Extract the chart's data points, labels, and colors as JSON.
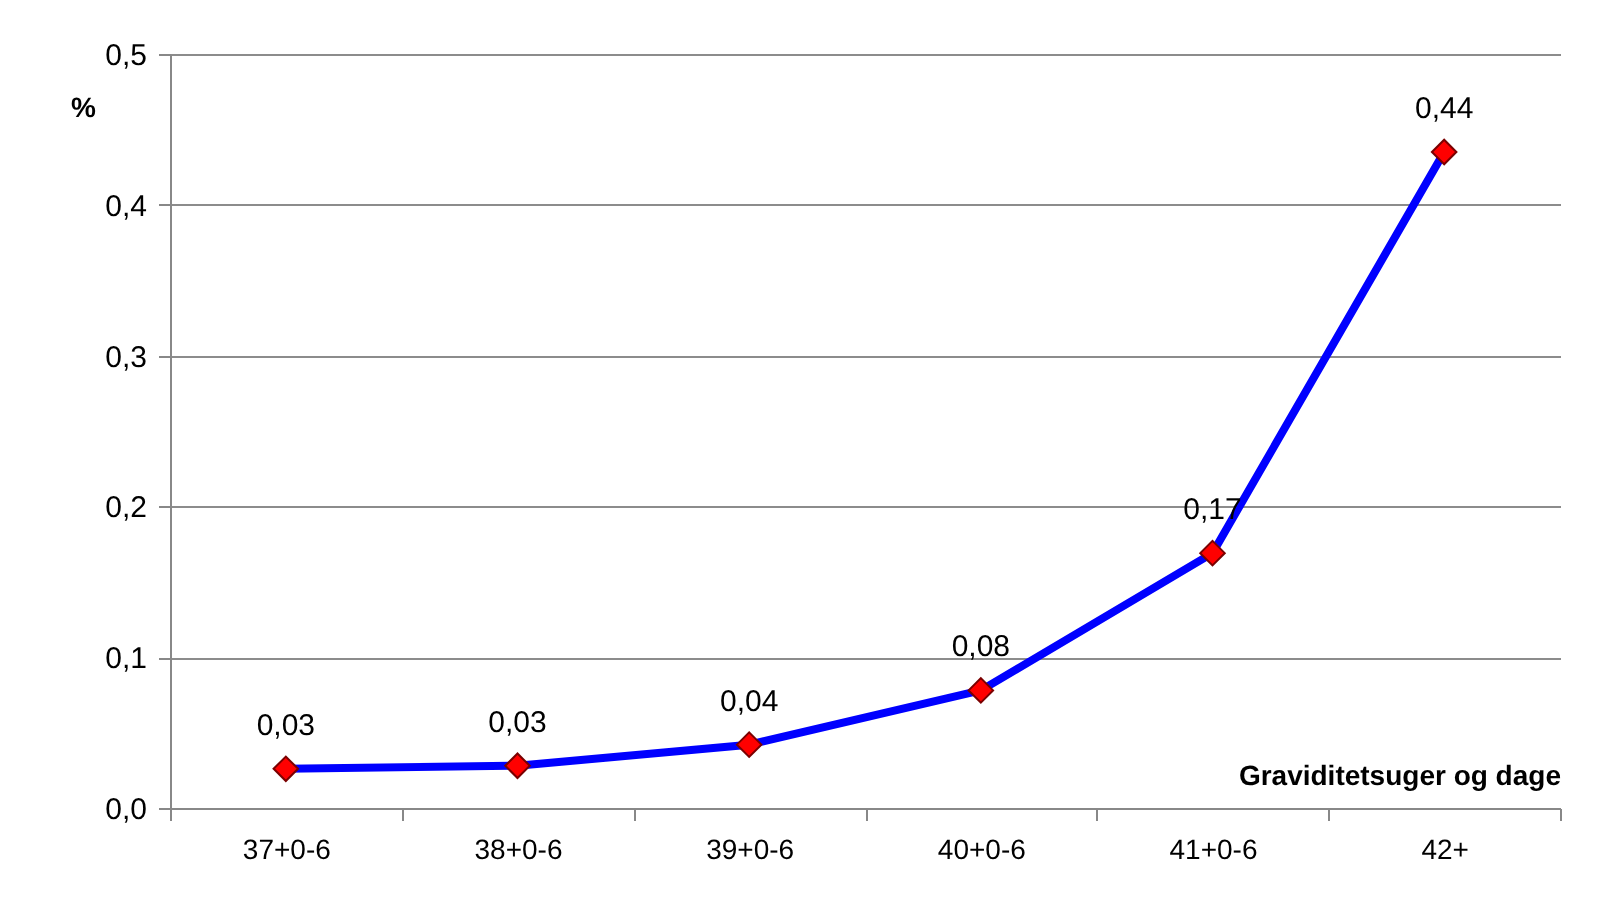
{
  "chart_data": {
    "type": "line",
    "xlabel": "Graviditetsuger og dage",
    "ylabel": "%",
    "categories": [
      "37+0-6",
      "38+0-6",
      "39+0-6",
      "40+0-6",
      "41+0-6",
      "42+"
    ],
    "series": [
      {
        "color": "#0000ff",
        "values": [
          0.026,
          0.028,
          0.042,
          0.078,
          0.169,
          0.435
        ],
        "value_labels": [
          "0,03",
          "0,03",
          "0,04",
          "0,08",
          "0,17",
          "0,44"
        ]
      }
    ],
    "ylim": [
      0,
      0.5
    ],
    "yticks": [
      {
        "value": 0,
        "label": "0,0"
      },
      {
        "value": 0.1,
        "label": "0,1"
      },
      {
        "value": 0.2,
        "label": "0,2"
      },
      {
        "value": 0.3,
        "label": "0,3"
      },
      {
        "value": 0.4,
        "label": "0,4"
      },
      {
        "value": 0.5,
        "label": "0,5"
      }
    ],
    "grid": "y",
    "marker": "diamond",
    "line_style": "solid"
  }
}
